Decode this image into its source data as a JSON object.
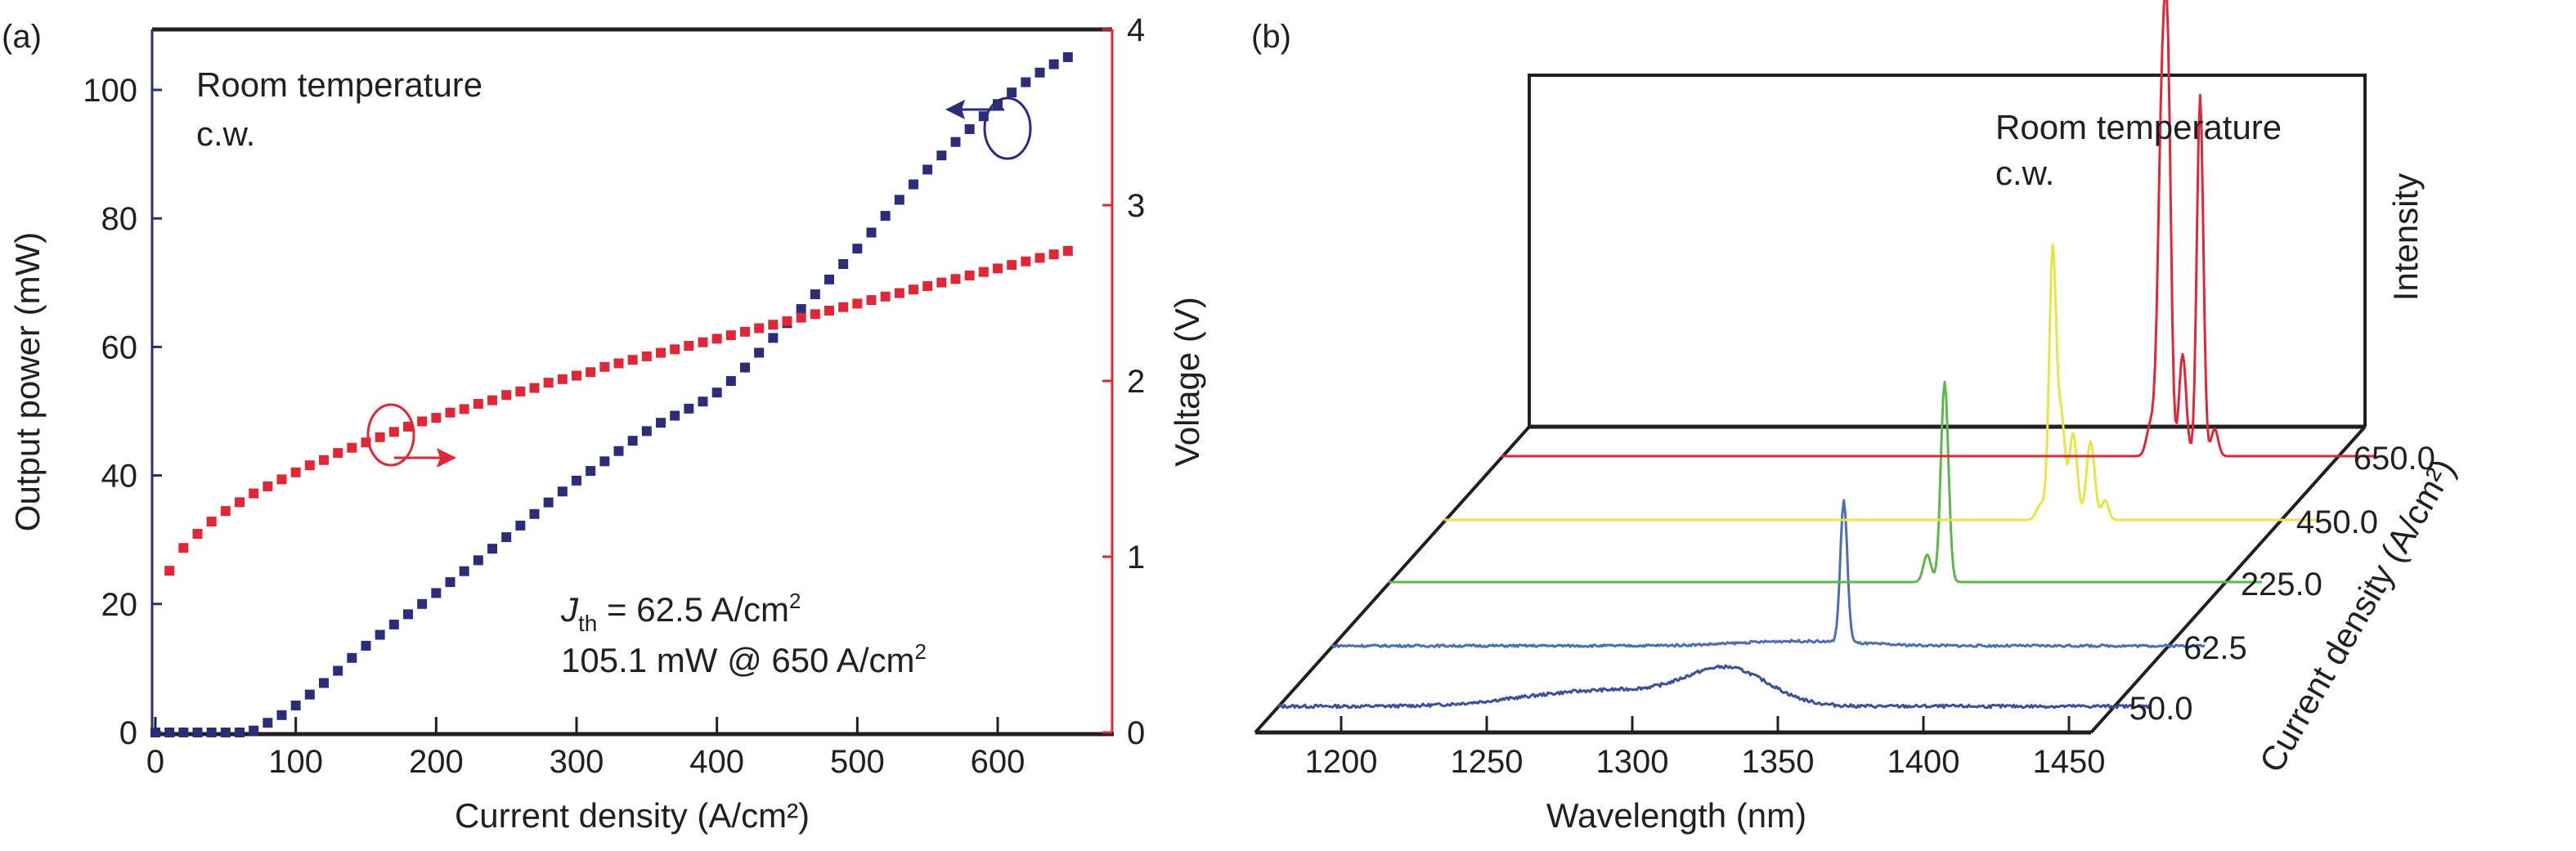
{
  "chart_data": [
    {
      "panel_label": "(a)",
      "type": "scatter",
      "xlabel": "Current density (A/cm²)",
      "ylabel": "Output power (mW)",
      "y2label": "Voltage (V)",
      "xlim": [
        0,
        680
      ],
      "ylim": [
        0,
        110
      ],
      "y2lim": [
        0,
        4
      ],
      "xticks": [
        0,
        100,
        200,
        300,
        400,
        500,
        600
      ],
      "yticks": [
        0,
        20,
        40,
        60,
        80,
        100
      ],
      "y2ticks": [
        0,
        1,
        2,
        3,
        4
      ],
      "annotation_top": [
        "Room temperature",
        "c.w."
      ],
      "annotation_jth_prefix": "J",
      "annotation_jth_sub": "th",
      "annotation_jth_rest": " = 62.5 A/cm",
      "annotation_power": "105.1 mW @ 650 A/cm",
      "superscript": "2",
      "series": [
        {
          "name": "Output power",
          "axis": "left",
          "color": "#2b2d7c",
          "x_start": 0,
          "x_step": 10,
          "count": 66,
          "values": [
            0,
            0,
            0,
            0,
            0,
            0,
            0,
            0.3,
            1.5,
            2.7,
            4.2,
            5.9,
            7.7,
            9.6,
            11.6,
            13.5,
            15.2,
            16.8,
            18.4,
            20,
            21.7,
            23.4,
            25.1,
            26.8,
            28.6,
            30.4,
            32.2,
            34,
            35.8,
            37.5,
            39.2,
            40.7,
            42.2,
            43.8,
            45.4,
            46.9,
            48.2,
            49.3,
            50.4,
            51.5,
            52.9,
            54.7,
            56.8,
            59.1,
            61.4,
            63.7,
            65.9,
            68.2,
            70.5,
            72.9,
            75.3,
            77.8,
            80.4,
            82.9,
            85.3,
            87.6,
            89.8,
            91.9,
            93.9,
            95.9,
            97.8,
            99.6,
            101.2,
            102.7,
            104,
            105.1
          ]
        },
        {
          "name": "Voltage",
          "axis": "right",
          "color": "#e32636",
          "x_start": 10,
          "x_step": 10,
          "count": 65,
          "values": [
            0.92,
            1.05,
            1.13,
            1.2,
            1.26,
            1.31,
            1.36,
            1.4,
            1.44,
            1.48,
            1.52,
            1.55,
            1.59,
            1.62,
            1.65,
            1.68,
            1.71,
            1.74,
            1.77,
            1.79,
            1.82,
            1.84,
            1.87,
            1.89,
            1.92,
            1.94,
            1.96,
            1.99,
            2.01,
            2.03,
            2.05,
            2.08,
            2.1,
            2.12,
            2.14,
            2.16,
            2.18,
            2.2,
            2.22,
            2.24,
            2.26,
            2.28,
            2.3,
            2.32,
            2.34,
            2.36,
            2.38,
            2.4,
            2.42,
            2.44,
            2.46,
            2.48,
            2.5,
            2.52,
            2.54,
            2.56,
            2.58,
            2.6,
            2.62,
            2.64,
            2.66,
            2.68,
            2.7,
            2.72,
            2.74
          ]
        }
      ]
    },
    {
      "panel_label": "(b)",
      "type": "line",
      "subtype": "3d-waterfall",
      "xlabel": "Wavelength (nm)",
      "ylabel": "Current density (A/cm²)",
      "zlabel": "Intensity",
      "xlim": [
        1170,
        1470
      ],
      "xticks": [
        1200,
        1250,
        1300,
        1350,
        1400,
        1450
      ],
      "annotation_top": [
        "Room temperature",
        "c.w."
      ],
      "series": [
        {
          "name": "50.0",
          "color": "#3b4fa0",
          "peaks": [
            [
              1325,
              0.09,
              14
            ],
            [
              1290,
              0.035,
              22
            ],
            [
              1260,
              0.015,
              20
            ]
          ],
          "noise": 0.004
        },
        {
          "name": "62.5",
          "color": "#4a6fb8",
          "peaks": [
            [
              1346,
              0.36,
              1.2
            ],
            [
              1330,
              0.012,
              20
            ]
          ],
          "noise": 0.003
        },
        {
          "name": "225.0",
          "color": "#5cb848",
          "peaks": [
            [
              1361,
              0.51,
              1.3
            ],
            [
              1355,
              0.07,
              1.3
            ]
          ],
          "noise": 0
        },
        {
          "name": "450.0",
          "color": "#e6e640",
          "peaks": [
            [
              1379,
              0.69,
              1.2
            ],
            [
              1382,
              0.25,
              1.2
            ],
            [
              1386,
              0.22,
              1.4
            ],
            [
              1392,
              0.2,
              1.4
            ],
            [
              1397,
              0.05,
              1.2
            ],
            [
              1375,
              0.04,
              1.5
            ]
          ],
          "noise": 0
        },
        {
          "name": "650.0",
          "color": "#e32636",
          "peaks": [
            [
              1397,
              0.9,
              1.4
            ],
            [
              1399,
              0.75,
              1.1
            ],
            [
              1410,
              0.92,
              1.1
            ],
            [
              1404,
              0.26,
              1.2
            ],
            [
              1415,
              0.07,
              1.2
            ],
            [
              1393,
              0.08,
              1.4
            ]
          ],
          "noise": 0
        }
      ]
    }
  ]
}
